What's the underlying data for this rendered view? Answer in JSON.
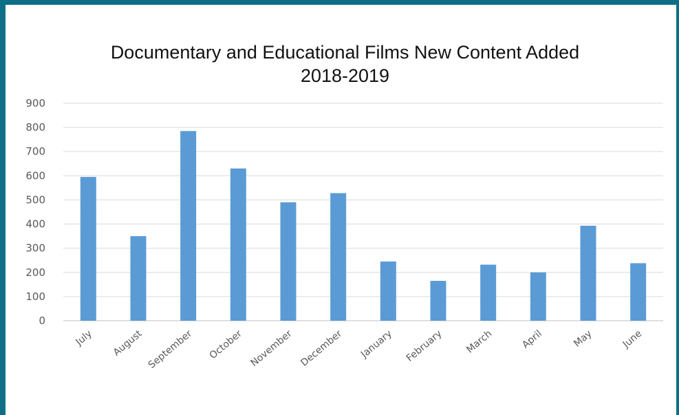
{
  "chart_data": {
    "type": "bar",
    "title": "Documentary and Educational Films New Content Added",
    "subtitle": "2018-2019",
    "categories": [
      "July",
      "August",
      "September",
      "October",
      "November",
      "December",
      "January",
      "February",
      "March",
      "April",
      "May",
      "June"
    ],
    "values": [
      595,
      350,
      785,
      630,
      490,
      528,
      245,
      165,
      232,
      200,
      393,
      238
    ],
    "ylim": [
      0,
      900
    ],
    "yticks": [
      0,
      100,
      200,
      300,
      400,
      500,
      600,
      700,
      800,
      900
    ],
    "grid": true,
    "bar_color": "#5b9bd5",
    "legend": "none"
  }
}
